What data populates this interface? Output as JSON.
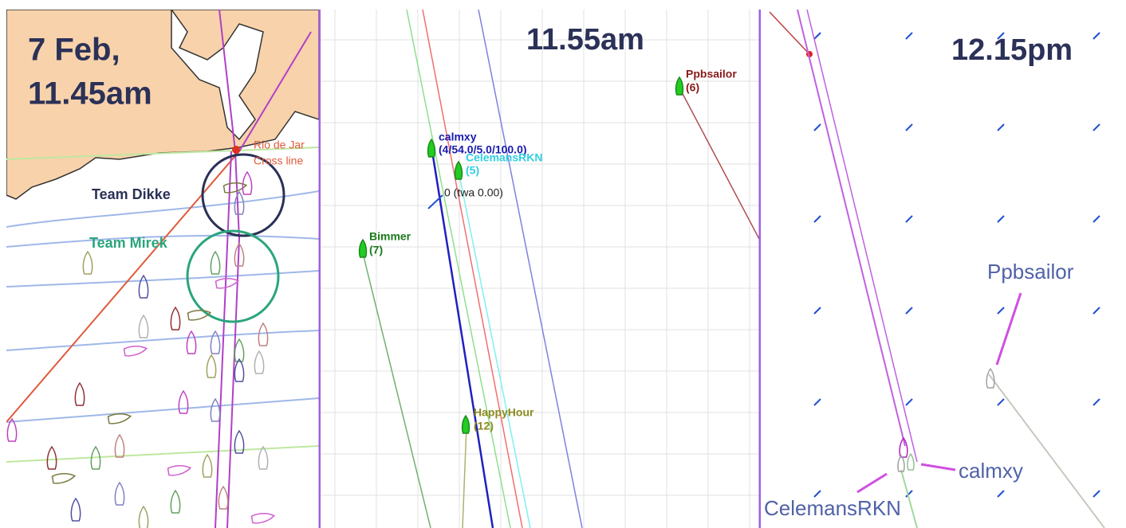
{
  "panels": [
    {
      "title_lines": [
        "7 Feb,",
        "11.45am"
      ],
      "labels": [
        "Rio de Jar",
        "Cross line",
        "Team Dikke",
        "Team Mirek"
      ]
    },
    {
      "title": "11.55am",
      "boats": [
        {
          "name": "Ppbsailor",
          "info": "(6)"
        },
        {
          "name": "calmxy",
          "info": "(4/54.0/5.0/100.0)"
        },
        {
          "name": "CelemansRKN",
          "info": "(5)"
        },
        {
          "name": "Bimmer",
          "info": "(7)"
        },
        {
          "name": "HappyHour",
          "info": "(12)"
        }
      ],
      "note": "0 (twa 0.00)"
    },
    {
      "title": "12.15pm",
      "labels": [
        "Ppbsailor",
        "calmxy",
        "CelemansRKN"
      ]
    }
  ]
}
